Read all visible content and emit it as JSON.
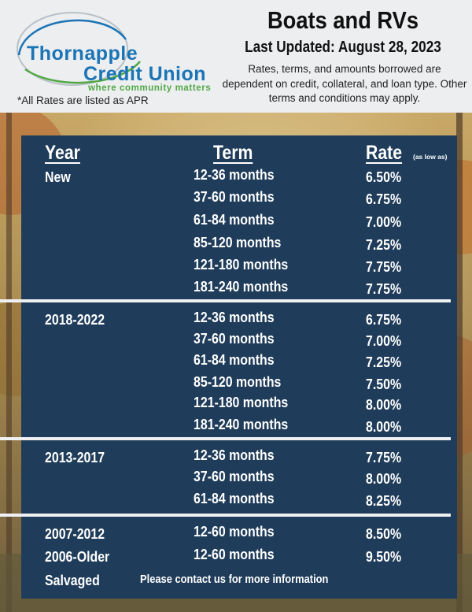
{
  "logo": {
    "line1": "Thornapple",
    "line2": "Credit Union",
    "tagline": "where community matters"
  },
  "apr_note": "*All Rates are listed as APR",
  "title": "Boats and RVs",
  "updated": "Last Updated: August 28, 2023",
  "disclaimer": "Rates, terms, and amounts borrowed are dependent on credit, collateral, and loan type. Other terms and conditions may apply.",
  "table": {
    "headers": {
      "year": "Year",
      "term": "Term",
      "rate": "Rate",
      "rate_note": "(as low as)"
    },
    "groups": [
      {
        "year": "New",
        "rows": [
          {
            "term": "12-36 months",
            "rate": "6.50%"
          },
          {
            "term": "37-60 months",
            "rate": "6.75%"
          },
          {
            "term": "61-84 months",
            "rate": "7.00%"
          },
          {
            "term": "85-120 months",
            "rate": "7.25%"
          },
          {
            "term": "121-180 months",
            "rate": "7.75%"
          },
          {
            "term": "181-240 months",
            "rate": "7.75%"
          }
        ]
      },
      {
        "year": "2018-2022",
        "rows": [
          {
            "term": "12-36 months",
            "rate": "6.75%"
          },
          {
            "term": "37-60 months",
            "rate": "7.00%"
          },
          {
            "term": "61-84 months",
            "rate": "7.25%"
          },
          {
            "term": "85-120 months",
            "rate": "7.50%"
          },
          {
            "term": "121-180 months",
            "rate": "8.00%"
          },
          {
            "term": "181-240 months",
            "rate": "8.00%"
          }
        ]
      },
      {
        "year": "2013-2017",
        "rows": [
          {
            "term": "12-36 months",
            "rate": "7.75%"
          },
          {
            "term": "37-60 months",
            "rate": "8.00%"
          },
          {
            "term": "61-84 months",
            "rate": "8.25%"
          }
        ]
      },
      {
        "year": "2007-2012",
        "rows": [
          {
            "term": "12-60 months",
            "rate": "8.50%"
          }
        ]
      },
      {
        "year": "2006-Older",
        "rows": [
          {
            "term": "12-60 months",
            "rate": "9.50%"
          }
        ]
      }
    ],
    "salvaged": {
      "year": "Salvaged",
      "note": "Please contact us for more information"
    }
  },
  "colors": {
    "brand_blue": "#1a74b5",
    "brand_green": "#52a845",
    "panel": "#1f3c5a"
  }
}
